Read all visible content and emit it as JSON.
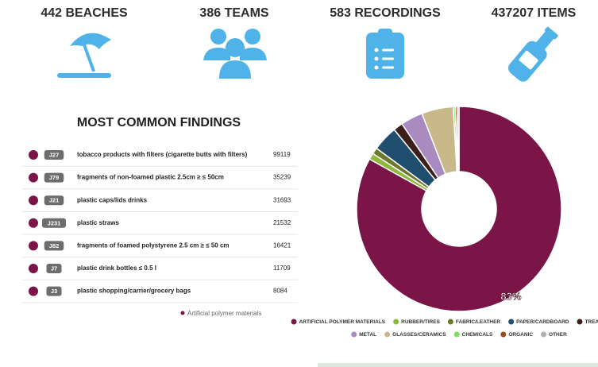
{
  "stats": [
    "442 BEACHES",
    "386 TEAMS",
    "583 RECORDINGS",
    "437207 ITEMS"
  ],
  "findings": {
    "title": "MOST COMMON FINDINGS",
    "rows": [
      {
        "code": "J27",
        "description": "tobacco products with filters (cigarette butts with filters)",
        "count": 99119
      },
      {
        "code": "J79",
        "description": "fragments of non-foamed plastic 2.5cm ≥ ≤ 50cm",
        "count": 35239
      },
      {
        "code": "J21",
        "description": "plastic caps/lids drinks",
        "count": 31693
      },
      {
        "code": "J231",
        "description": "plastic straws",
        "count": 21532
      },
      {
        "code": "J82",
        "description": "fragments of foamed polystyrene 2.5 cm ≥ ≤ 50 cm",
        "count": 16421
      },
      {
        "code": "J7",
        "description": "plastic drink bottles ≤ 0.5 l",
        "count": 11709
      },
      {
        "code": "J3",
        "description": "plastic shopping/carrier/grocery bags",
        "count": 8084
      }
    ],
    "legend": "Artificial polymer materials"
  },
  "chart_data": {
    "type": "donut",
    "categories": [
      "ARTIFICIAL POLYMER MATERIALS",
      "RUBBER/TIRES",
      "FABRIC/LEATHER",
      "PAPER/CARDBOARD",
      "TREATED WOOD",
      "METAL",
      "GLASSES/CERAMICS",
      "CHEMICALS",
      "ORGANIC",
      "OTHER"
    ],
    "values": [
      83,
      1,
      1,
      4,
      1.5,
      3.5,
      5,
      0.3,
      0.3,
      0.3
    ],
    "value_labels": [
      "83%",
      null,
      null,
      null,
      null,
      null,
      null,
      null,
      null,
      null
    ],
    "colors": [
      "#7b1548",
      "#8fb83a",
      "#6b7a2a",
      "#1f4e6e",
      "#3b1f1a",
      "#a98bc0",
      "#c9b98a",
      "#7ee05a",
      "#9a4a1f",
      "#b0b0b0"
    ]
  }
}
